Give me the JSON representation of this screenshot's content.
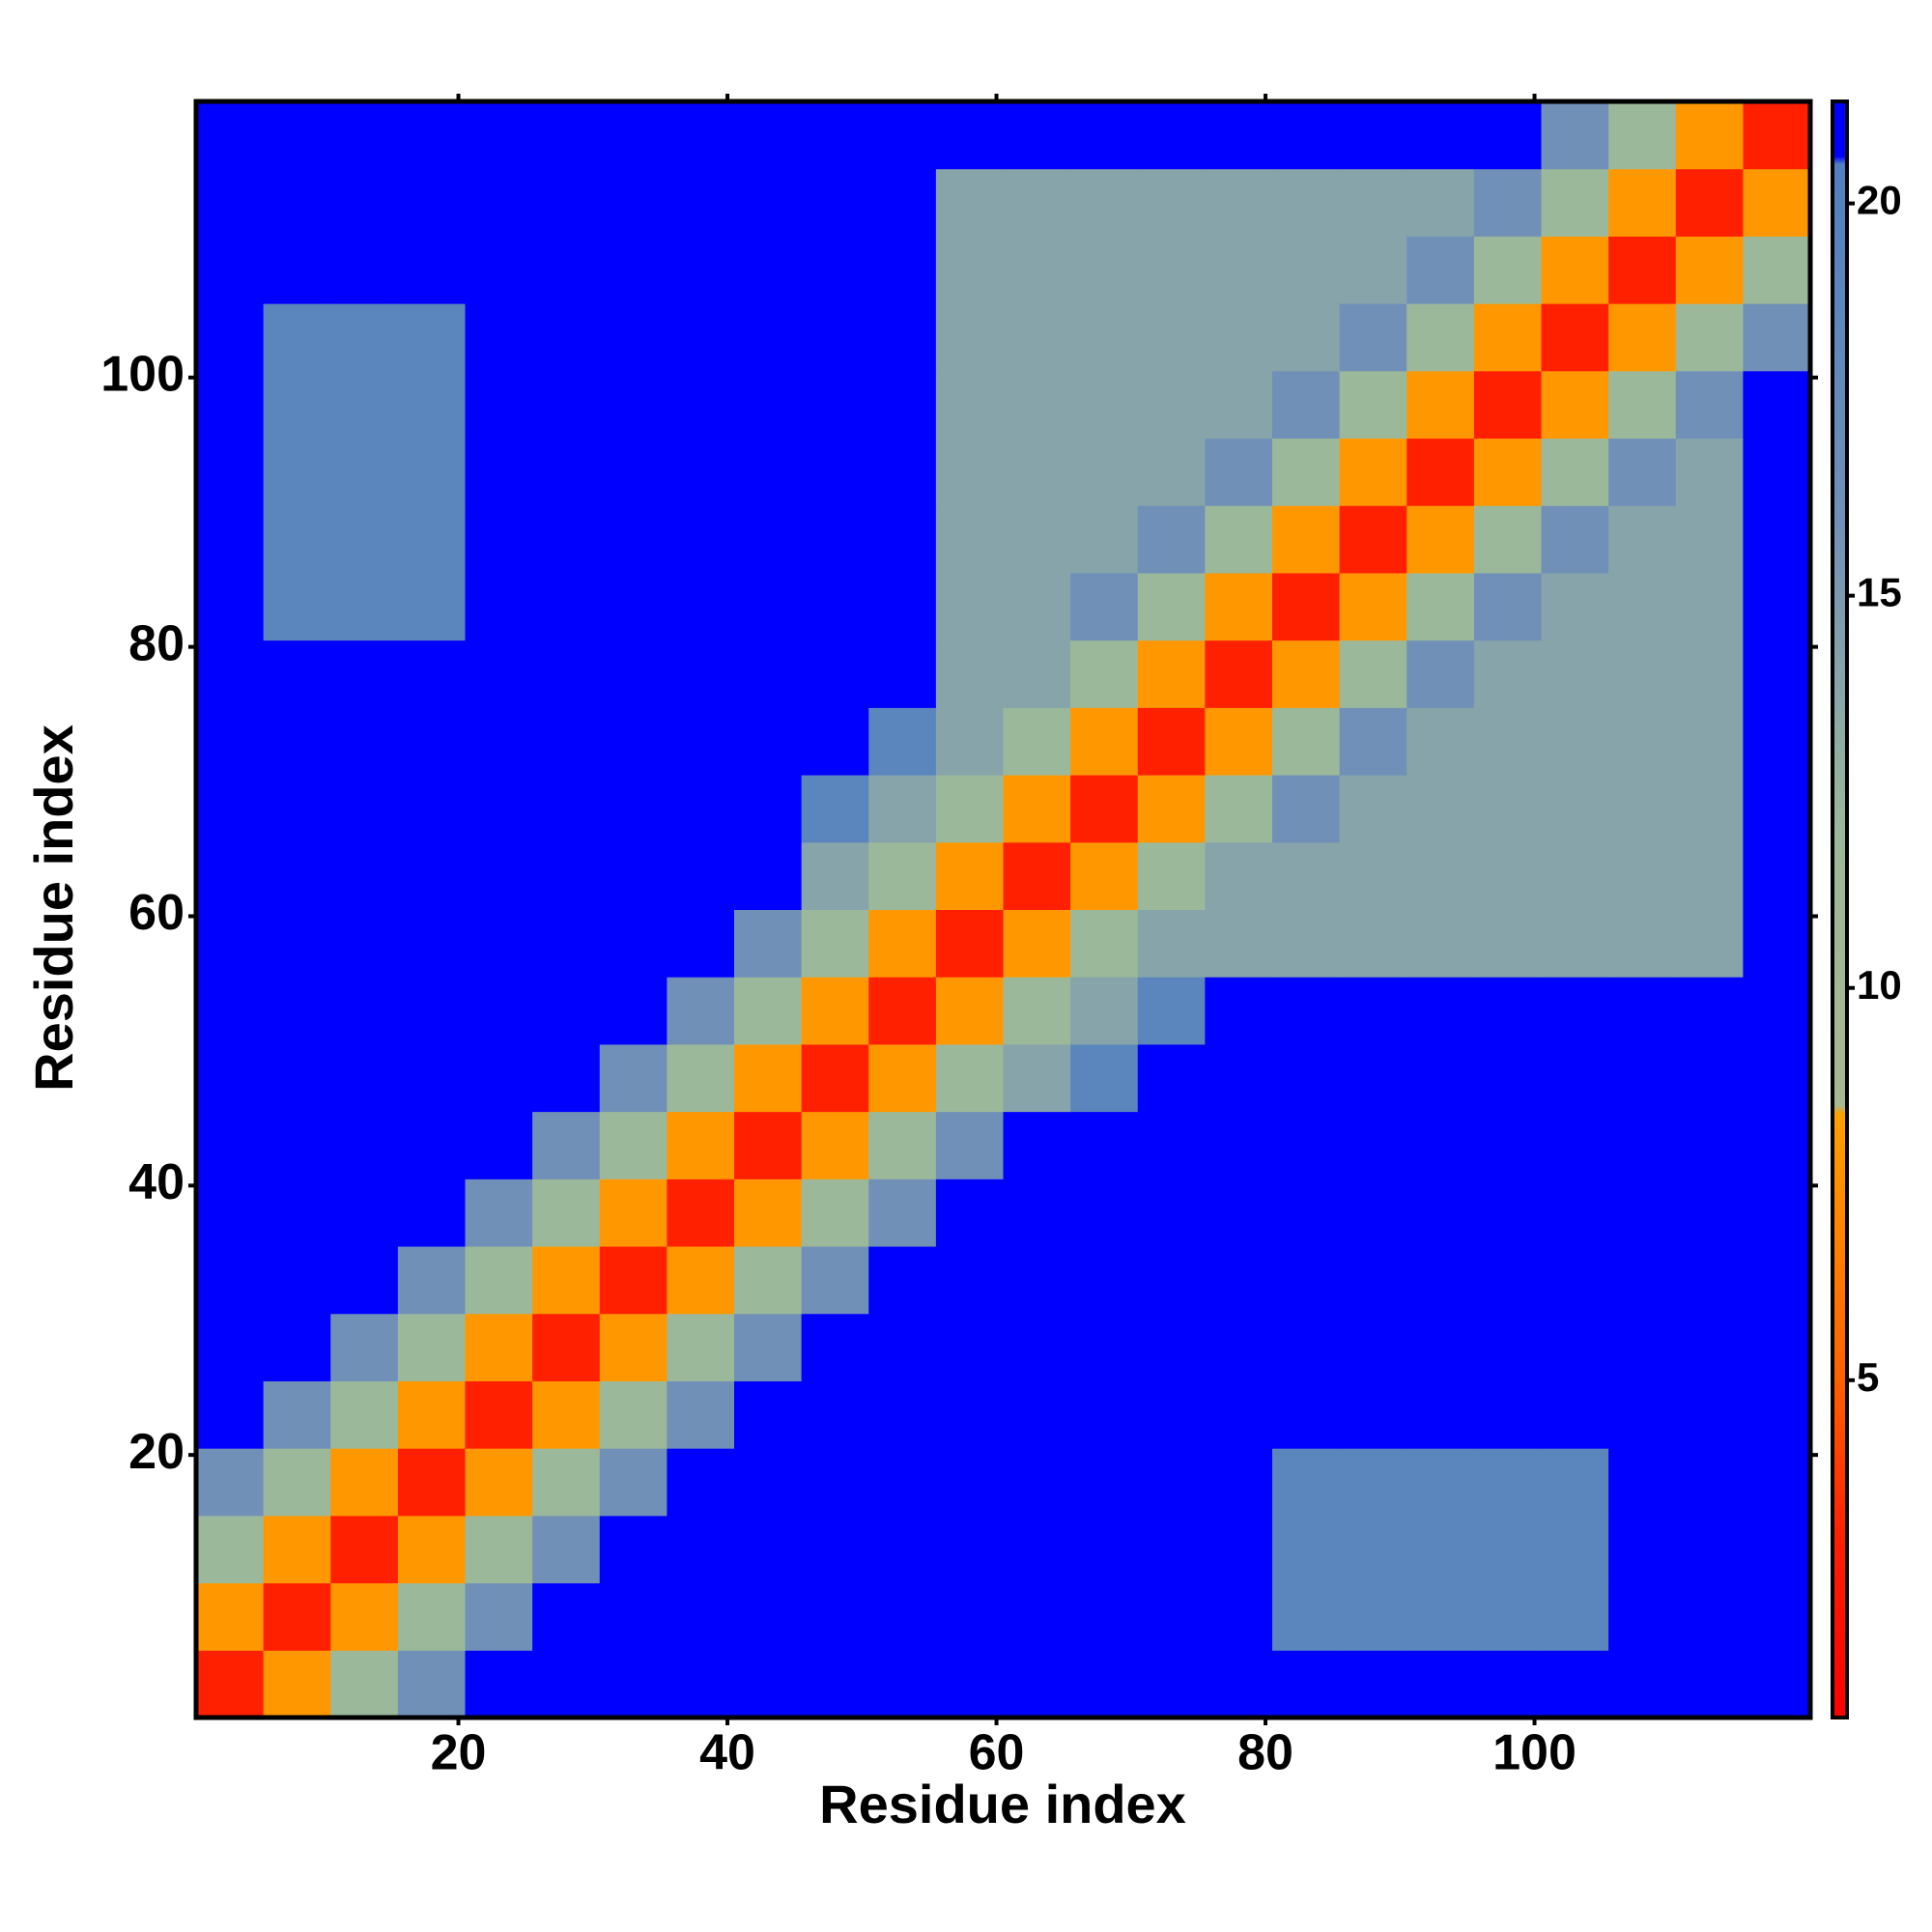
{
  "chart_data": {
    "type": "heatmap",
    "x_label": "Residue index",
    "y_label": "Residue index",
    "x": [
      3,
      8,
      13,
      18,
      23,
      28,
      33,
      38,
      43,
      48,
      53,
      58,
      63,
      68,
      73,
      78,
      83,
      88,
      93,
      98,
      103,
      108,
      113,
      118
    ],
    "y": [
      3,
      8,
      13,
      18,
      23,
      28,
      33,
      38,
      43,
      48,
      53,
      58,
      63,
      68,
      73,
      78,
      83,
      88,
      93,
      98,
      103,
      108,
      113,
      118
    ],
    "z": [
      [
        3,
        8,
        12,
        16,
        21,
        21,
        21,
        21,
        21,
        21,
        21,
        21,
        21,
        21,
        21,
        21,
        21,
        21,
        21,
        21,
        21,
        21,
        21,
        21
      ],
      [
        8,
        3,
        8,
        12,
        16,
        21,
        21,
        21,
        21,
        21,
        21,
        21,
        21,
        21,
        21,
        21,
        19,
        19,
        19,
        19,
        19,
        21,
        21,
        21
      ],
      [
        12,
        8,
        3,
        8,
        12,
        16,
        21,
        21,
        21,
        21,
        21,
        21,
        21,
        21,
        21,
        21,
        19,
        19,
        19,
        19,
        19,
        21,
        21,
        21
      ],
      [
        16,
        12,
        8,
        3,
        8,
        12,
        16,
        21,
        21,
        21,
        21,
        21,
        21,
        21,
        21,
        21,
        19,
        19,
        19,
        19,
        19,
        21,
        21,
        21
      ],
      [
        21,
        16,
        12,
        8,
        3,
        8,
        12,
        16,
        21,
        21,
        21,
        21,
        21,
        21,
        21,
        21,
        21,
        21,
        21,
        21,
        21,
        21,
        21,
        21
      ],
      [
        21,
        21,
        16,
        12,
        8,
        3,
        8,
        12,
        16,
        21,
        21,
        21,
        21,
        21,
        21,
        21,
        21,
        21,
        21,
        21,
        21,
        21,
        21,
        21
      ],
      [
        21,
        21,
        21,
        16,
        12,
        8,
        3,
        8,
        12,
        16,
        21,
        21,
        21,
        21,
        21,
        21,
        21,
        21,
        21,
        21,
        21,
        21,
        21,
        21
      ],
      [
        21,
        21,
        21,
        21,
        16,
        12,
        8,
        3,
        8,
        12,
        16,
        21,
        21,
        21,
        21,
        21,
        21,
        21,
        21,
        21,
        21,
        21,
        21,
        21
      ],
      [
        21,
        21,
        21,
        21,
        21,
        16,
        12,
        8,
        3,
        8,
        12,
        16,
        21,
        21,
        21,
        21,
        21,
        21,
        21,
        21,
        21,
        21,
        21,
        21
      ],
      [
        21,
        21,
        21,
        21,
        21,
        21,
        16,
        12,
        8,
        3,
        8,
        12,
        14,
        19,
        21,
        21,
        21,
        21,
        21,
        21,
        21,
        21,
        21,
        21
      ],
      [
        21,
        21,
        21,
        21,
        21,
        21,
        21,
        16,
        12,
        8,
        3,
        8,
        12,
        14,
        19,
        21,
        21,
        21,
        21,
        21,
        21,
        21,
        21,
        21
      ],
      [
        21,
        21,
        21,
        21,
        21,
        21,
        21,
        21,
        16,
        12,
        8,
        3,
        8,
        12,
        14,
        14,
        14,
        14,
        14,
        14,
        14,
        14,
        14,
        21
      ],
      [
        21,
        21,
        21,
        21,
        21,
        21,
        21,
        21,
        21,
        14,
        12,
        8,
        3,
        8,
        12,
        14,
        14,
        14,
        14,
        14,
        14,
        14,
        14,
        21
      ],
      [
        21,
        21,
        21,
        21,
        21,
        21,
        21,
        21,
        21,
        19,
        14,
        12,
        8,
        3,
        8,
        12,
        16,
        14,
        14,
        14,
        14,
        14,
        14,
        21
      ],
      [
        21,
        21,
        21,
        21,
        21,
        21,
        21,
        21,
        21,
        21,
        19,
        14,
        12,
        8,
        3,
        8,
        12,
        16,
        14,
        14,
        14,
        14,
        14,
        21
      ],
      [
        21,
        21,
        21,
        21,
        21,
        21,
        21,
        21,
        21,
        21,
        21,
        14,
        14,
        12,
        8,
        3,
        8,
        12,
        16,
        14,
        14,
        14,
        14,
        21
      ],
      [
        21,
        19,
        19,
        19,
        21,
        21,
        21,
        21,
        21,
        21,
        21,
        14,
        14,
        16,
        12,
        8,
        3,
        8,
        12,
        16,
        14,
        14,
        14,
        21
      ],
      [
        21,
        19,
        19,
        19,
        21,
        21,
        21,
        21,
        21,
        21,
        21,
        14,
        14,
        14,
        16,
        12,
        8,
        3,
        8,
        12,
        16,
        14,
        14,
        21
      ],
      [
        21,
        19,
        19,
        19,
        21,
        21,
        21,
        21,
        21,
        21,
        21,
        14,
        14,
        14,
        14,
        16,
        12,
        8,
        3,
        8,
        12,
        16,
        14,
        21
      ],
      [
        21,
        19,
        19,
        19,
        21,
        21,
        21,
        21,
        21,
        21,
        21,
        14,
        14,
        14,
        14,
        14,
        16,
        12,
        8,
        3,
        8,
        12,
        16,
        21
      ],
      [
        21,
        19,
        19,
        19,
        21,
        21,
        21,
        21,
        21,
        21,
        21,
        14,
        14,
        14,
        14,
        14,
        14,
        16,
        12,
        8,
        3,
        8,
        12,
        16
      ],
      [
        21,
        21,
        21,
        21,
        21,
        21,
        21,
        21,
        21,
        21,
        21,
        14,
        14,
        14,
        14,
        14,
        14,
        14,
        16,
        12,
        8,
        3,
        8,
        12
      ],
      [
        21,
        21,
        21,
        21,
        21,
        21,
        21,
        21,
        21,
        21,
        21,
        14,
        14,
        14,
        14,
        14,
        14,
        14,
        14,
        16,
        12,
        8,
        3,
        8
      ],
      [
        21,
        21,
        21,
        21,
        21,
        21,
        21,
        21,
        21,
        21,
        21,
        21,
        21,
        21,
        21,
        21,
        21,
        21,
        21,
        21,
        16,
        12,
        8,
        3
      ]
    ],
    "xlim": [
      0.5,
      120.5
    ],
    "ylim": [
      0.5,
      120.5
    ],
    "xticks": [
      20,
      40,
      60,
      80,
      100
    ],
    "yticks": [
      20,
      40,
      60,
      80,
      100
    ],
    "clim": [
      0.7,
      21.3
    ],
    "cticks": [
      5,
      10,
      15,
      20
    ],
    "colorscale": [
      [
        0.7,
        "#ff0000"
      ],
      [
        3,
        "#ff2000"
      ],
      [
        5,
        "#ff6000"
      ],
      [
        8.4,
        "#ffa000"
      ],
      [
        8.5,
        "#a8b890"
      ],
      [
        12,
        "#9cb89a"
      ],
      [
        16,
        "#7090b8"
      ],
      [
        20.5,
        "#5080c0"
      ],
      [
        20.6,
        "#0000ff"
      ]
    ]
  }
}
